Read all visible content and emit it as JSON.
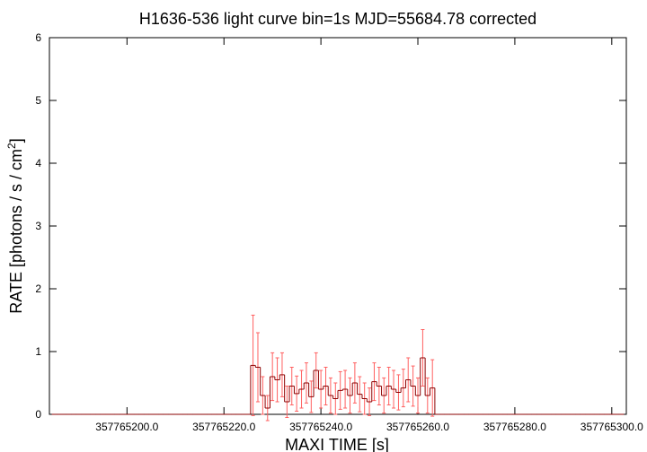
{
  "chart_data": {
    "type": "histeps",
    "title": "H1636-536 light curve bin=1s MJD=55684.78 corrected",
    "xlabel": "MAXI TIME [s]",
    "ylabel": [
      "RATE [photons / s / cm",
      "2",
      "]"
    ],
    "xlim": [
      357765184,
      357765303
    ],
    "ylim": [
      0,
      6
    ],
    "xticks": [
      {
        "value": 357765200,
        "label": "357765200.0"
      },
      {
        "value": 357765220,
        "label": "357765220.0"
      },
      {
        "value": 357765240,
        "label": "357765240.0"
      },
      {
        "value": 357765260,
        "label": "357765260.0"
      },
      {
        "value": 357765280,
        "label": "357765280.0"
      },
      {
        "value": 357765300,
        "label": "357765300.0"
      }
    ],
    "yticks": [
      0,
      1,
      2,
      3,
      4,
      5,
      6
    ],
    "color": "#8b0000",
    "error_color": "#ff6060",
    "x": [
      357765185,
      357765186,
      357765187,
      357765188,
      357765189,
      357765190,
      357765191,
      357765192,
      357765193,
      357765194,
      357765195,
      357765196,
      357765197,
      357765198,
      357765199,
      357765200,
      357765201,
      357765202,
      357765203,
      357765204,
      357765205,
      357765206,
      357765207,
      357765208,
      357765209,
      357765210,
      357765211,
      357765212,
      357765213,
      357765214,
      357765215,
      357765216,
      357765217,
      357765218,
      357765219,
      357765220,
      357765221,
      357765222,
      357765223,
      357765224,
      357765225,
      357765226,
      357765227,
      357765228,
      357765229,
      357765230,
      357765231,
      357765232,
      357765233,
      357765234,
      357765235,
      357765236,
      357765237,
      357765238,
      357765239,
      357765240,
      357765241,
      357765242,
      357765243,
      357765244,
      357765245,
      357765246,
      357765247,
      357765248,
      357765249,
      357765250,
      357765251,
      357765252,
      357765253,
      357765254,
      357765255,
      357765256,
      357765257,
      357765258,
      357765259,
      357765260,
      357765261,
      357765262,
      357765263,
      357765264,
      357765265,
      357765266,
      357765267,
      357765268,
      357765269,
      357765270,
      357765271,
      357765272,
      357765273,
      357765274,
      357765275,
      357765276,
      357765277,
      357765278,
      357765279,
      357765280,
      357765281,
      357765282,
      357765283,
      357765284,
      357765285,
      357765286,
      357765287,
      357765288,
      357765289,
      357765290,
      357765291,
      357765292,
      357765293,
      357765294,
      357765295,
      357765296,
      357765297,
      357765298,
      357765299,
      357765300,
      357765301,
      357765302
    ],
    "values": [
      0,
      0,
      0,
      0,
      0,
      0,
      0,
      0,
      0,
      0,
      0,
      0,
      0,
      0,
      0,
      0,
      0,
      0,
      0,
      0,
      0,
      0,
      0,
      0,
      0,
      0,
      0,
      0,
      0,
      0,
      0,
      0,
      0,
      0,
      0,
      0,
      0,
      0,
      0,
      0,
      0,
      0.78,
      0.75,
      0.3,
      0.1,
      0.6,
      0.55,
      0.63,
      0.2,
      0.45,
      0.33,
      0.4,
      0.5,
      0.28,
      0.7,
      0.4,
      0.45,
      0.3,
      0.25,
      0.38,
      0.4,
      0.3,
      0.5,
      0.32,
      0.25,
      0.2,
      0.52,
      0.45,
      0.3,
      0.45,
      0.4,
      0.35,
      0.42,
      0.55,
      0.45,
      0.3,
      0.9,
      0.3,
      0.42,
      0,
      0,
      0,
      0,
      0,
      0,
      0,
      0,
      0,
      0,
      0,
      0,
      0,
      0,
      0,
      0,
      0,
      0,
      0,
      0,
      0,
      0,
      0,
      0,
      0,
      0,
      0,
      0,
      0,
      0,
      0,
      0,
      0,
      0,
      0,
      0,
      0,
      0,
      0
    ],
    "errors": [
      0,
      0,
      0,
      0,
      0,
      0,
      0,
      0,
      0,
      0,
      0,
      0,
      0,
      0,
      0,
      0,
      0,
      0,
      0,
      0,
      0,
      0,
      0,
      0,
      0,
      0,
      0,
      0,
      0,
      0,
      0,
      0,
      0,
      0,
      0,
      0,
      0,
      0,
      0,
      0,
      0,
      0.8,
      0.55,
      0.3,
      0.2,
      0.38,
      0.35,
      0.35,
      0.25,
      0.3,
      0.28,
      0.3,
      0.32,
      0.25,
      0.28,
      0.3,
      0.3,
      0.28,
      0.25,
      0.3,
      0.3,
      0.28,
      0.32,
      0.28,
      0.25,
      0.22,
      0.3,
      0.3,
      0.28,
      0.3,
      0.3,
      0.28,
      0.3,
      0.35,
      0.32,
      0.28,
      0.45,
      0.28,
      0.45,
      0,
      0,
      0,
      0,
      0,
      0,
      0,
      0,
      0,
      0,
      0,
      0,
      0,
      0,
      0,
      0,
      0,
      0,
      0,
      0,
      0,
      0,
      0,
      0,
      0,
      0,
      0,
      0,
      0,
      0,
      0,
      0,
      0,
      0,
      0,
      0,
      0,
      0,
      0
    ]
  }
}
